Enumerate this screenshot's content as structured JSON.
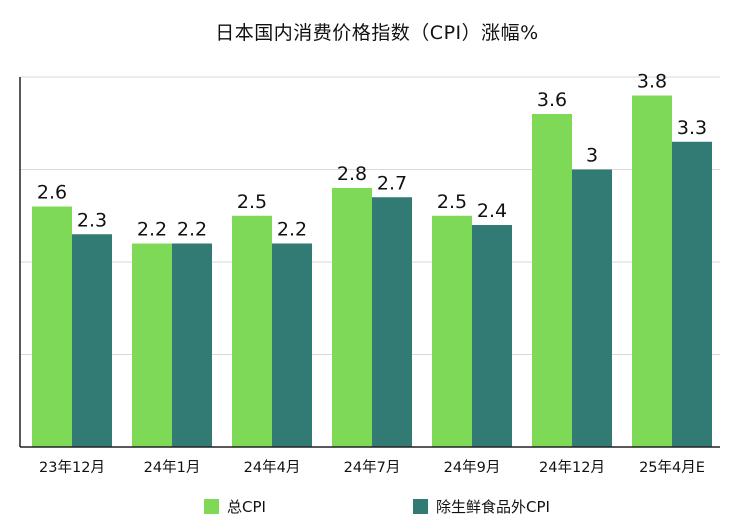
{
  "chart_data": {
    "type": "bar",
    "title": "日本国内消费价格指数（CPI）涨幅%",
    "categories": [
      "23年12月",
      "24年1月",
      "24年4月",
      "24年7月",
      "24年9月",
      "24年12月",
      "25年4月E"
    ],
    "series": [
      {
        "name": "总CPI",
        "color": "#7ed957",
        "values": [
          2.6,
          2.2,
          2.5,
          2.8,
          2.5,
          3.6,
          3.8
        ]
      },
      {
        "name": "除生鲜食品外CPI",
        "color": "#327a74",
        "values": [
          2.3,
          2.2,
          2.2,
          2.7,
          2.4,
          3.0,
          3.3
        ]
      }
    ],
    "data_labels": [
      [
        "2.6",
        "2.2",
        "2.5",
        "2.8",
        "2.5",
        "3.6",
        "3.8"
      ],
      [
        "2.3",
        "2.2",
        "2.2",
        "2.7",
        "2.4",
        "3",
        "3.3"
      ]
    ],
    "ylim": [
      0,
      4
    ],
    "grid": true,
    "ytick_labels_shown": false,
    "legend": "bottom"
  }
}
